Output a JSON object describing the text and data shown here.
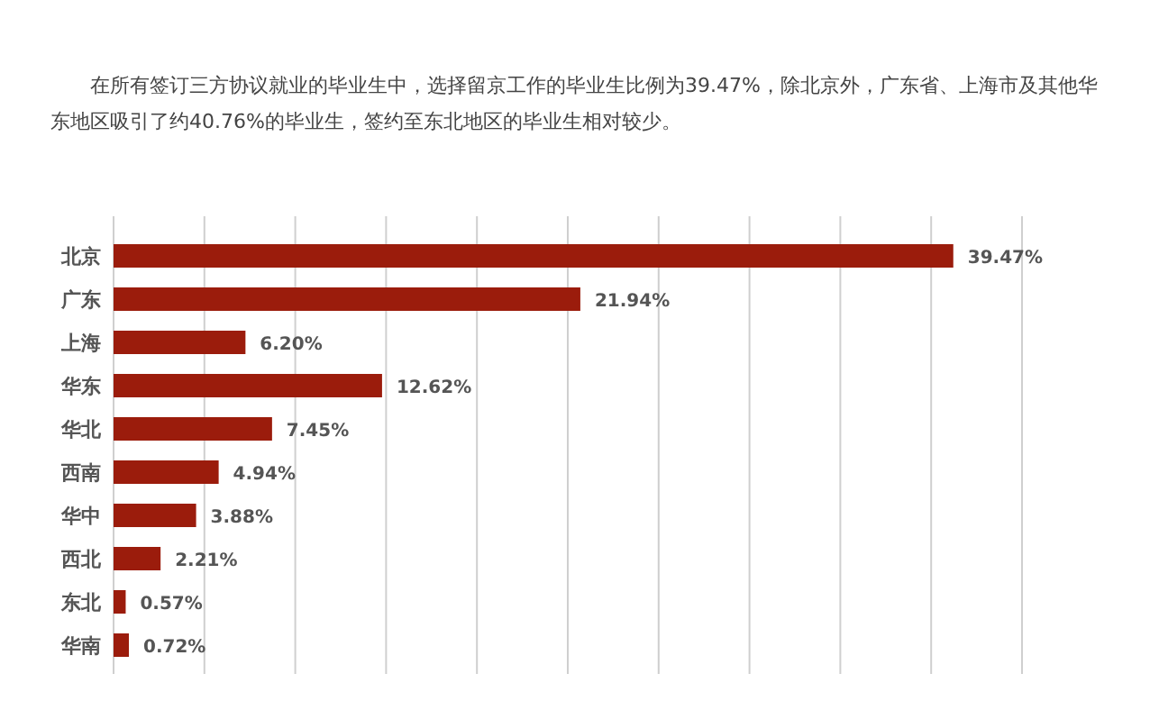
{
  "chart_data": {
    "type": "bar",
    "orientation": "horizontal",
    "annotations": [
      "在所有签订三方协议就业的毕业生中，选择留京工作的毕业生比例为39.47%，除北京外，广东省、上海市及其他华东地区吸引了约40.76%的毕业生，签约至东北地区的毕业生相对较少。"
    ],
    "categories": [
      "北京",
      "广东",
      "上海",
      "华东",
      "华北",
      "西南",
      "华中",
      "西北",
      "东北",
      "华南"
    ],
    "values": [
      39.47,
      21.94,
      6.2,
      12.62,
      7.45,
      4.94,
      3.88,
      2.21,
      0.57,
      0.72
    ],
    "value_labels": [
      "39.47%",
      "21.94%",
      "6.20%",
      "12.62%",
      "7.45%",
      "4.94%",
      "3.88%",
      "2.21%",
      "0.57%",
      "0.72%"
    ],
    "color": "#9b1c0c",
    "xlim": [
      0,
      42.7
    ],
    "xticks": [
      {
        "value": 0,
        "label": null
      },
      {
        "value": 4.27,
        "label": null
      },
      {
        "value": 8.54,
        "label": null
      },
      {
        "value": 12.81,
        "label": null
      },
      {
        "value": 17.08,
        "label": null
      },
      {
        "value": 21.35,
        "label": null
      },
      {
        "value": 25.62,
        "label": null
      },
      {
        "value": 29.89,
        "label": null
      },
      {
        "value": 34.16,
        "label": null
      },
      {
        "value": 38.43,
        "label": null
      },
      {
        "value": 42.7,
        "label": null
      }
    ],
    "grid": "x"
  }
}
